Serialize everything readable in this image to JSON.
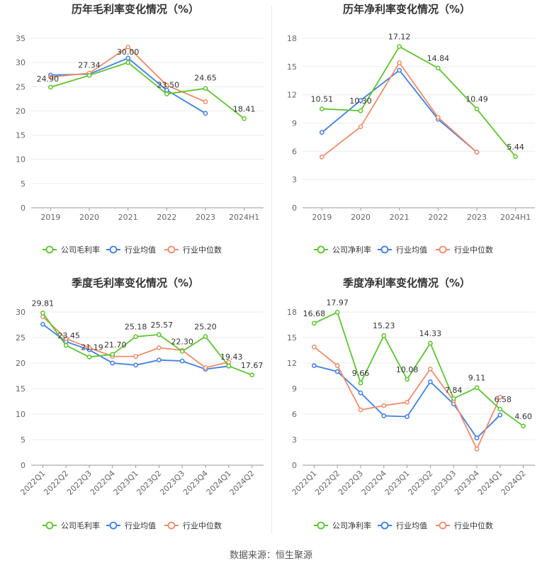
{
  "footer": {
    "source": "数据来源：恒生聚源"
  },
  "chart_data": [
    {
      "type": "line",
      "title": "历年毛利率变化情况（%）",
      "categories": [
        "2019",
        "2020",
        "2021",
        "2022",
        "2023",
        "2024H1"
      ],
      "ylim": [
        0,
        35
      ],
      "yticks": [
        0,
        5,
        10,
        15,
        20,
        25,
        30,
        35
      ],
      "grid": true,
      "legend_position": "bottom",
      "series": [
        {
          "name": "公司毛利率",
          "color": "#5cc32e",
          "labeled": true,
          "values": [
            24.9,
            27.34,
            30.0,
            23.5,
            24.65,
            18.41
          ]
        },
        {
          "name": "行业均值",
          "color": "#3f7fe0",
          "labeled": false,
          "values": [
            27.4,
            27.6,
            30.9,
            24.3,
            19.5,
            null
          ]
        },
        {
          "name": "行业中位数",
          "color": "#f08b6a",
          "labeled": false,
          "values": [
            27.0,
            27.8,
            33.2,
            25.3,
            21.9,
            null
          ]
        }
      ]
    },
    {
      "type": "line",
      "title": "历年净利率变化情况（%）",
      "categories": [
        "2019",
        "2020",
        "2021",
        "2022",
        "2023",
        "2024H1"
      ],
      "ylim": [
        0,
        18
      ],
      "yticks": [
        0,
        3,
        6,
        9,
        12,
        15,
        18
      ],
      "grid": true,
      "legend_position": "bottom",
      "series": [
        {
          "name": "公司净利率",
          "color": "#5cc32e",
          "labeled": true,
          "values": [
            10.51,
            10.3,
            17.12,
            14.84,
            10.49,
            5.44
          ]
        },
        {
          "name": "行业均值",
          "color": "#3f7fe0",
          "labeled": false,
          "values": [
            8.0,
            11.4,
            14.6,
            9.4,
            5.9,
            null
          ]
        },
        {
          "name": "行业中位数",
          "color": "#f08b6a",
          "labeled": false,
          "values": [
            5.4,
            8.6,
            15.4,
            9.6,
            5.9,
            null
          ]
        }
      ]
    },
    {
      "type": "line",
      "title": "季度毛利率变化情况（%）",
      "categories": [
        "2022Q1",
        "2022Q2",
        "2022Q3",
        "2022Q4",
        "2023Q1",
        "2023Q2",
        "2023Q3",
        "2023Q4",
        "2024Q1",
        "2024Q2"
      ],
      "ylim": [
        0,
        30
      ],
      "yticks": [
        0,
        5,
        10,
        15,
        20,
        25,
        30
      ],
      "grid": true,
      "legend_position": "bottom",
      "series": [
        {
          "name": "公司毛利率",
          "color": "#5cc32e",
          "labeled": true,
          "values": [
            29.81,
            23.45,
            21.19,
            21.7,
            25.18,
            25.57,
            22.3,
            25.2,
            19.43,
            17.67
          ]
        },
        {
          "name": "行业均值",
          "color": "#3f7fe0",
          "labeled": false,
          "values": [
            27.6,
            24.2,
            22.6,
            20.0,
            19.6,
            20.6,
            20.4,
            18.8,
            19.4,
            null
          ]
        },
        {
          "name": "行业中位数",
          "color": "#f08b6a",
          "labeled": false,
          "values": [
            29.1,
            24.8,
            23.0,
            21.3,
            21.3,
            23.0,
            22.5,
            19.1,
            20.2,
            null
          ]
        }
      ]
    },
    {
      "type": "line",
      "title": "季度净利率变化情况（%）",
      "categories": [
        "2022Q1",
        "2022Q2",
        "2022Q3",
        "2022Q4",
        "2023Q1",
        "2023Q2",
        "2023Q3",
        "2023Q4",
        "2024Q1",
        "2024Q2"
      ],
      "ylim": [
        0,
        18
      ],
      "yticks": [
        0,
        3,
        6,
        9,
        12,
        15,
        18
      ],
      "grid": true,
      "legend_position": "bottom",
      "series": [
        {
          "name": "公司净利率",
          "color": "#5cc32e",
          "labeled": true,
          "values": [
            16.68,
            17.97,
            9.66,
            15.23,
            10.08,
            14.33,
            7.84,
            9.11,
            6.58,
            4.6
          ]
        },
        {
          "name": "行业均值",
          "color": "#3f7fe0",
          "labeled": false,
          "values": [
            11.7,
            11.0,
            8.5,
            5.8,
            5.7,
            9.8,
            7.2,
            3.2,
            5.9,
            null
          ]
        },
        {
          "name": "行业中位数",
          "color": "#f08b6a",
          "labeled": false,
          "values": [
            13.9,
            11.7,
            6.5,
            7.0,
            7.4,
            11.3,
            7.6,
            1.9,
            8.0,
            null
          ]
        }
      ]
    }
  ]
}
